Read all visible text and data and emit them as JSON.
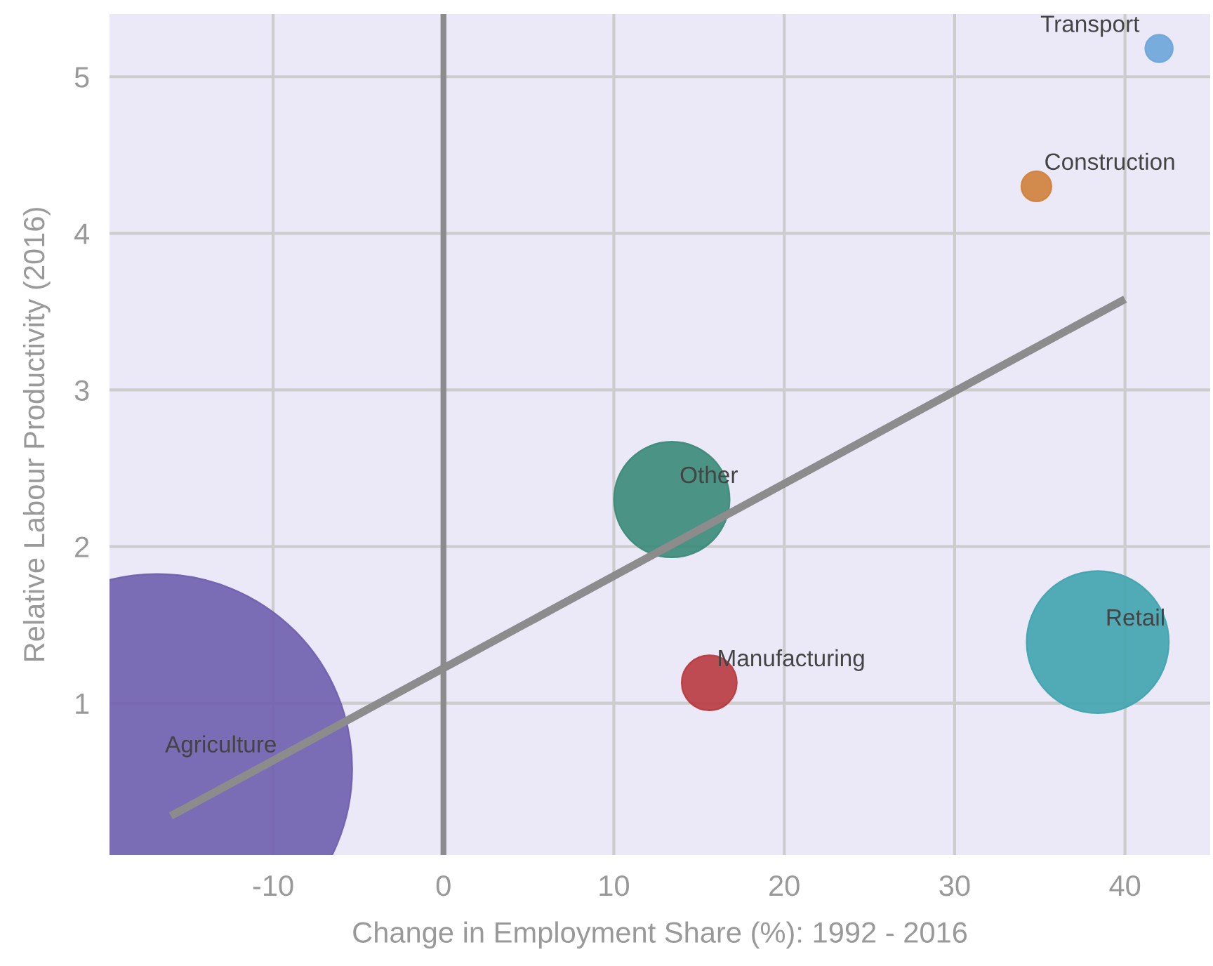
{
  "chart_data": {
    "type": "bubble",
    "xlabel": "Change in Employment Share (%): 1992 - 2016",
    "ylabel": "Relative Labour Productivity (2016)",
    "series": [
      {
        "x": [
          -16.8,
          13.4,
          38.4,
          15.6,
          34.8,
          42.0
        ],
        "values": [
          0.58,
          2.3,
          1.39,
          1.13,
          4.3,
          5.18
        ],
        "sizes": [
          1,
          0.088,
          0.133,
          0.02,
          0.006,
          0.005
        ],
        "colors": [
          "#6f5eae",
          "#3a8a78",
          "#3fa4ae",
          "#b83a3e",
          "#d0813a",
          "#6ba5d8"
        ]
      },
      {
        "type": "line",
        "x": [
          -16,
          40
        ],
        "values": [
          0.28,
          3.58
        ],
        "color": "#8c8c8c"
      }
    ],
    "annotations": [
      {
        "text": "Agriculture",
        "x": -16.8,
        "y": 0.58
      },
      {
        "text": "Other",
        "x": 13.4,
        "y": 2.3
      },
      {
        "text": "Retail",
        "x": 38.4,
        "y": 1.39
      },
      {
        "text": "Manufacturing",
        "x": 15.6,
        "y": 1.13
      },
      {
        "text": "Construction",
        "x": 34.8,
        "y": 4.3
      },
      {
        "text": "Transport",
        "x": 42.0,
        "y": 5.18
      }
    ],
    "xlim": [
      -19.6,
      45
    ],
    "ylim": [
      0.03,
      5.4
    ],
    "xticks": [
      -10,
      0,
      10,
      20,
      30,
      40
    ],
    "yticks": [
      1,
      2,
      3,
      4,
      5
    ],
    "ref_lines": [
      {
        "axis": "x",
        "value": 0,
        "color": "#8c8c8c"
      }
    ],
    "grid": true
  }
}
